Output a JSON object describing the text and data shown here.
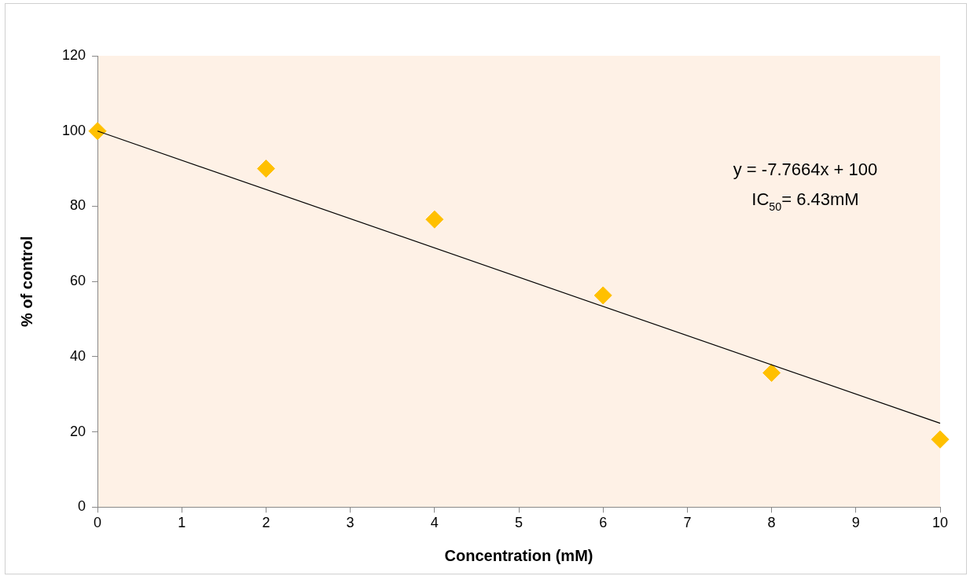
{
  "chart_data": {
    "type": "scatter",
    "xlabel": "Concentration (mM)",
    "ylabel": "% of control",
    "x": [
      0,
      2,
      4,
      6,
      8,
      10
    ],
    "series": [
      {
        "type": "scatter",
        "color": "#ffc000",
        "marker": "diamond",
        "values": [
          100,
          90,
          76.5,
          56.3,
          35.7,
          18.0
        ]
      },
      {
        "type": "line",
        "color": "#000000",
        "marker": "none",
        "x": [
          0,
          10
        ],
        "values": [
          100,
          22.3
        ]
      }
    ],
    "xlim": [
      0,
      10
    ],
    "xticks": [
      0,
      1,
      2,
      3,
      4,
      5,
      6,
      7,
      8,
      9,
      10
    ],
    "ylim": [
      0,
      120
    ],
    "yticks": [
      0,
      20,
      40,
      60,
      80,
      100,
      120
    ],
    "grid": false,
    "legend": false,
    "annotations": [
      "y = -7.7664x + 100",
      "IC$_{50}$= 6.43mM"
    ]
  }
}
